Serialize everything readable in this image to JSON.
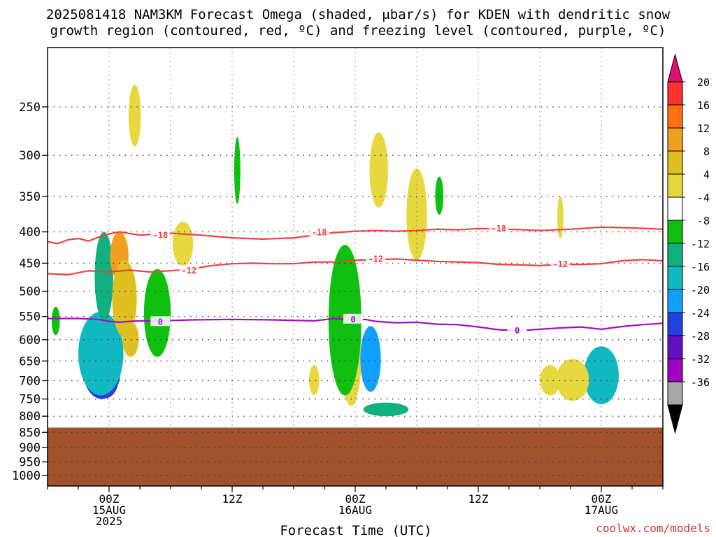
{
  "title": {
    "line1": "2025081418 NAM3KM Forecast Omega (shaded, μbar/s) for KDEN with dendritic snow",
    "line2": "growth region (contoured, red, ºC) and freezing level (contoured, purple, ºC)"
  },
  "credit": "coolwx.com/models",
  "chart_data": {
    "type": "heatmap",
    "xlabel": "Forecast Time (UTC)",
    "ylabel": "",
    "x_ticks": [
      {
        "h": 0,
        "lines": [
          "00Z",
          "15AUG",
          "2025"
        ]
      },
      {
        "h": 12,
        "lines": [
          "12Z"
        ]
      },
      {
        "h": 24,
        "lines": [
          "00Z",
          "16AUG"
        ]
      },
      {
        "h": 36,
        "lines": [
          "12Z"
        ]
      },
      {
        "h": 48,
        "lines": [
          "00Z",
          "17AUG"
        ]
      }
    ],
    "xlim_hours": [
      -6,
      54
    ],
    "y_ticks_hpa": [
      250,
      300,
      350,
      400,
      450,
      500,
      550,
      600,
      650,
      700,
      750,
      800,
      850,
      900,
      950,
      1000
    ],
    "ylim_hpa": [
      200,
      1040
    ],
    "y_scale": "log-pressure",
    "grid": true,
    "ground_pressure_hpa": 835,
    "colorbar": {
      "label_values": [
        20,
        16,
        12,
        8,
        4,
        -4,
        -8,
        -12,
        -16,
        -20,
        -24,
        -28,
        -32,
        -36
      ],
      "colors": [
        "#e01070",
        "#ff3030",
        "#ff7010",
        "#f0a020",
        "#e0c020",
        "#e8d840",
        "#ffffff",
        "#10c010",
        "#10b080",
        "#10b8c0",
        "#10a0ff",
        "#2040e0",
        "#6010c0",
        "#a000c0",
        "#a8a8a8",
        "#000000"
      ]
    },
    "isotherms": [
      {
        "value": -18,
        "color": "#ee4040",
        "label": "-18",
        "points": [
          [
            -6,
            415
          ],
          [
            -5,
            418
          ],
          [
            -4,
            412
          ],
          [
            -3,
            410
          ],
          [
            -2,
            414
          ],
          [
            -1,
            408
          ],
          [
            0,
            403
          ],
          [
            1,
            400
          ],
          [
            3,
            405
          ],
          [
            6,
            402
          ],
          [
            9,
            405
          ],
          [
            12,
            409
          ],
          [
            15,
            411
          ],
          [
            18,
            409
          ],
          [
            20,
            405
          ],
          [
            22,
            401
          ],
          [
            24,
            399
          ],
          [
            26,
            398
          ],
          [
            28,
            399
          ],
          [
            30,
            398
          ],
          [
            32,
            396
          ],
          [
            34,
            397
          ],
          [
            36,
            395
          ],
          [
            39,
            396
          ],
          [
            42,
            398
          ],
          [
            45,
            396
          ],
          [
            48,
            393
          ],
          [
            51,
            394
          ],
          [
            54,
            396
          ]
        ],
        "label_at": [
          [
            5,
            405
          ],
          [
            20.5,
            401
          ],
          [
            38,
            395
          ]
        ]
      },
      {
        "value": -12,
        "color": "#ee4040",
        "label": "-12",
        "points": [
          [
            -6,
            468
          ],
          [
            -4,
            470
          ],
          [
            -2,
            463
          ],
          [
            0,
            465
          ],
          [
            2,
            462
          ],
          [
            4,
            465
          ],
          [
            6,
            463
          ],
          [
            8,
            460
          ],
          [
            10,
            454
          ],
          [
            12,
            451
          ],
          [
            14,
            450
          ],
          [
            16,
            451
          ],
          [
            18,
            451
          ],
          [
            20,
            448
          ],
          [
            22,
            448
          ],
          [
            24,
            445
          ],
          [
            26,
            444
          ],
          [
            28,
            443
          ],
          [
            30,
            445
          ],
          [
            32,
            447
          ],
          [
            34,
            448
          ],
          [
            36,
            449
          ],
          [
            38,
            452
          ],
          [
            40,
            453
          ],
          [
            42,
            454
          ],
          [
            44,
            452
          ],
          [
            46,
            452
          ],
          [
            48,
            451
          ],
          [
            50,
            446
          ],
          [
            52,
            444
          ],
          [
            54,
            446
          ]
        ],
        "label_at": [
          [
            7.8,
            463
          ],
          [
            26,
            443
          ],
          [
            44,
            452
          ]
        ]
      },
      {
        "value": 0,
        "color": "#a010c0",
        "label": "0",
        "points": [
          [
            -6,
            554
          ],
          [
            -3,
            554
          ],
          [
            -1,
            556
          ],
          [
            0,
            560
          ],
          [
            1,
            562
          ],
          [
            2,
            560
          ],
          [
            3,
            559
          ],
          [
            5,
            559
          ],
          [
            8,
            557
          ],
          [
            12,
            556
          ],
          [
            16,
            557
          ],
          [
            20,
            559
          ],
          [
            22,
            554
          ],
          [
            24,
            558
          ],
          [
            25,
            556
          ],
          [
            26,
            560
          ],
          [
            28,
            563
          ],
          [
            30,
            562
          ],
          [
            32,
            566
          ],
          [
            34,
            567
          ],
          [
            36,
            572
          ],
          [
            38,
            578
          ],
          [
            40,
            580
          ],
          [
            42,
            577
          ],
          [
            44,
            574
          ],
          [
            46,
            572
          ],
          [
            48,
            577
          ],
          [
            50,
            571
          ],
          [
            52,
            567
          ],
          [
            54,
            564
          ]
        ],
        "label_at": [
          [
            5,
            561
          ],
          [
            23.8,
            556
          ],
          [
            39.8,
            580
          ]
        ]
      }
    ],
    "omega_features": [
      {
        "name": "core-15aug-0",
        "hx": 0,
        "p": 710,
        "rx": 0.7,
        "ry": 62,
        "level": 12
      },
      {
        "name": "core-15aug-1",
        "hx": -0.4,
        "p": 700,
        "rx": 1.3,
        "ry": 95,
        "level": 13
      },
      {
        "name": "core-15aug-2",
        "hx": -0.7,
        "p": 680,
        "rx": 1.8,
        "ry": 140,
        "level": 11
      },
      {
        "name": "core-15aug-3",
        "hx": -0.8,
        "p": 640,
        "rx": 2.2,
        "ry": 200,
        "level": 9
      },
      {
        "name": "core-15aug-4",
        "hx": -0.5,
        "p": 480,
        "rx": 0.9,
        "ry": 160,
        "level": 8
      },
      {
        "name": "up-15aug-a",
        "hx": 1.0,
        "p": 440,
        "rx": 0.9,
        "ry": 80,
        "level": 3
      },
      {
        "name": "up-15aug-b",
        "hx": 1.5,
        "p": 520,
        "rx": 1.2,
        "ry": 150,
        "level": 4
      },
      {
        "name": "up-15aug-c",
        "hx": 2.1,
        "p": 600,
        "rx": 0.8,
        "ry": 80,
        "level": 4
      },
      {
        "name": "down-15aug-e",
        "hx": 4.7,
        "p": 550,
        "rx": 1.3,
        "ry": 180,
        "level": 7
      },
      {
        "name": "down-15aug-w",
        "hx": -5.2,
        "p": 560,
        "rx": 0.4,
        "ry": 60,
        "level": 7
      },
      {
        "name": "core-16aug-0",
        "hx": 24,
        "p": 640,
        "rx": 0.4,
        "ry": 120,
        "level": 1
      },
      {
        "name": "core-16aug-1",
        "hx": 23.8,
        "p": 650,
        "rx": 0.8,
        "ry": 200,
        "level": 2
      },
      {
        "name": "core-16aug-2",
        "hx": 23.6,
        "p": 650,
        "rx": 1.0,
        "ry": 240,
        "level": 5
      },
      {
        "name": "core-16aug-3",
        "hx": 23.0,
        "p": 580,
        "rx": 1.6,
        "ry": 320,
        "level": 7
      },
      {
        "name": "down-16aug-a",
        "hx": 25.5,
        "p": 650,
        "rx": 1.0,
        "ry": 160,
        "level": 10
      },
      {
        "name": "down-16aug-b",
        "hx": 27,
        "p": 780,
        "rx": 2.2,
        "ry": 40,
        "level": 8
      },
      {
        "name": "core-17aug-0",
        "hx": 48,
        "p": 710,
        "rx": 0.6,
        "ry": 70,
        "level": 13
      },
      {
        "name": "core-17aug-1",
        "hx": 48.2,
        "p": 700,
        "rx": 1.2,
        "ry": 110,
        "level": 11
      },
      {
        "name": "core-17aug-2",
        "hx": 48.0,
        "p": 690,
        "rx": 1.7,
        "ry": 150,
        "level": 9
      },
      {
        "name": "up-17aug-a",
        "hx": 45.2,
        "p": 700,
        "rx": 1.6,
        "ry": 110,
        "level": 5
      },
      {
        "name": "up-17aug-b",
        "hx": 44,
        "p": 380,
        "rx": 0.3,
        "ry": 60,
        "level": 5
      },
      {
        "name": "up-mid-a",
        "hx": 7.2,
        "p": 420,
        "rx": 1.0,
        "ry": 70,
        "level": 5
      },
      {
        "name": "up-mid-b",
        "hx": 26.3,
        "p": 320,
        "rx": 0.9,
        "ry": 90,
        "level": 5
      },
      {
        "name": "up-mid-c",
        "hx": 30,
        "p": 380,
        "rx": 1.0,
        "ry": 130,
        "level": 5
      },
      {
        "name": "down-mid-d",
        "hx": 32.2,
        "p": 350,
        "rx": 0.4,
        "ry": 50,
        "level": 7
      },
      {
        "name": "down-mid-e",
        "hx": 12.5,
        "p": 320,
        "rx": 0.3,
        "ry": 80,
        "level": 7
      },
      {
        "name": "up-mid-f",
        "hx": 20,
        "p": 700,
        "rx": 0.5,
        "ry": 80,
        "level": 5
      },
      {
        "name": "up-mid-g",
        "hx": 43,
        "p": 700,
        "rx": 1.0,
        "ry": 80,
        "level": 5
      },
      {
        "name": "up-mid-h",
        "hx": 2.5,
        "p": 260,
        "rx": 0.6,
        "ry": 60,
        "level": 5
      }
    ]
  }
}
